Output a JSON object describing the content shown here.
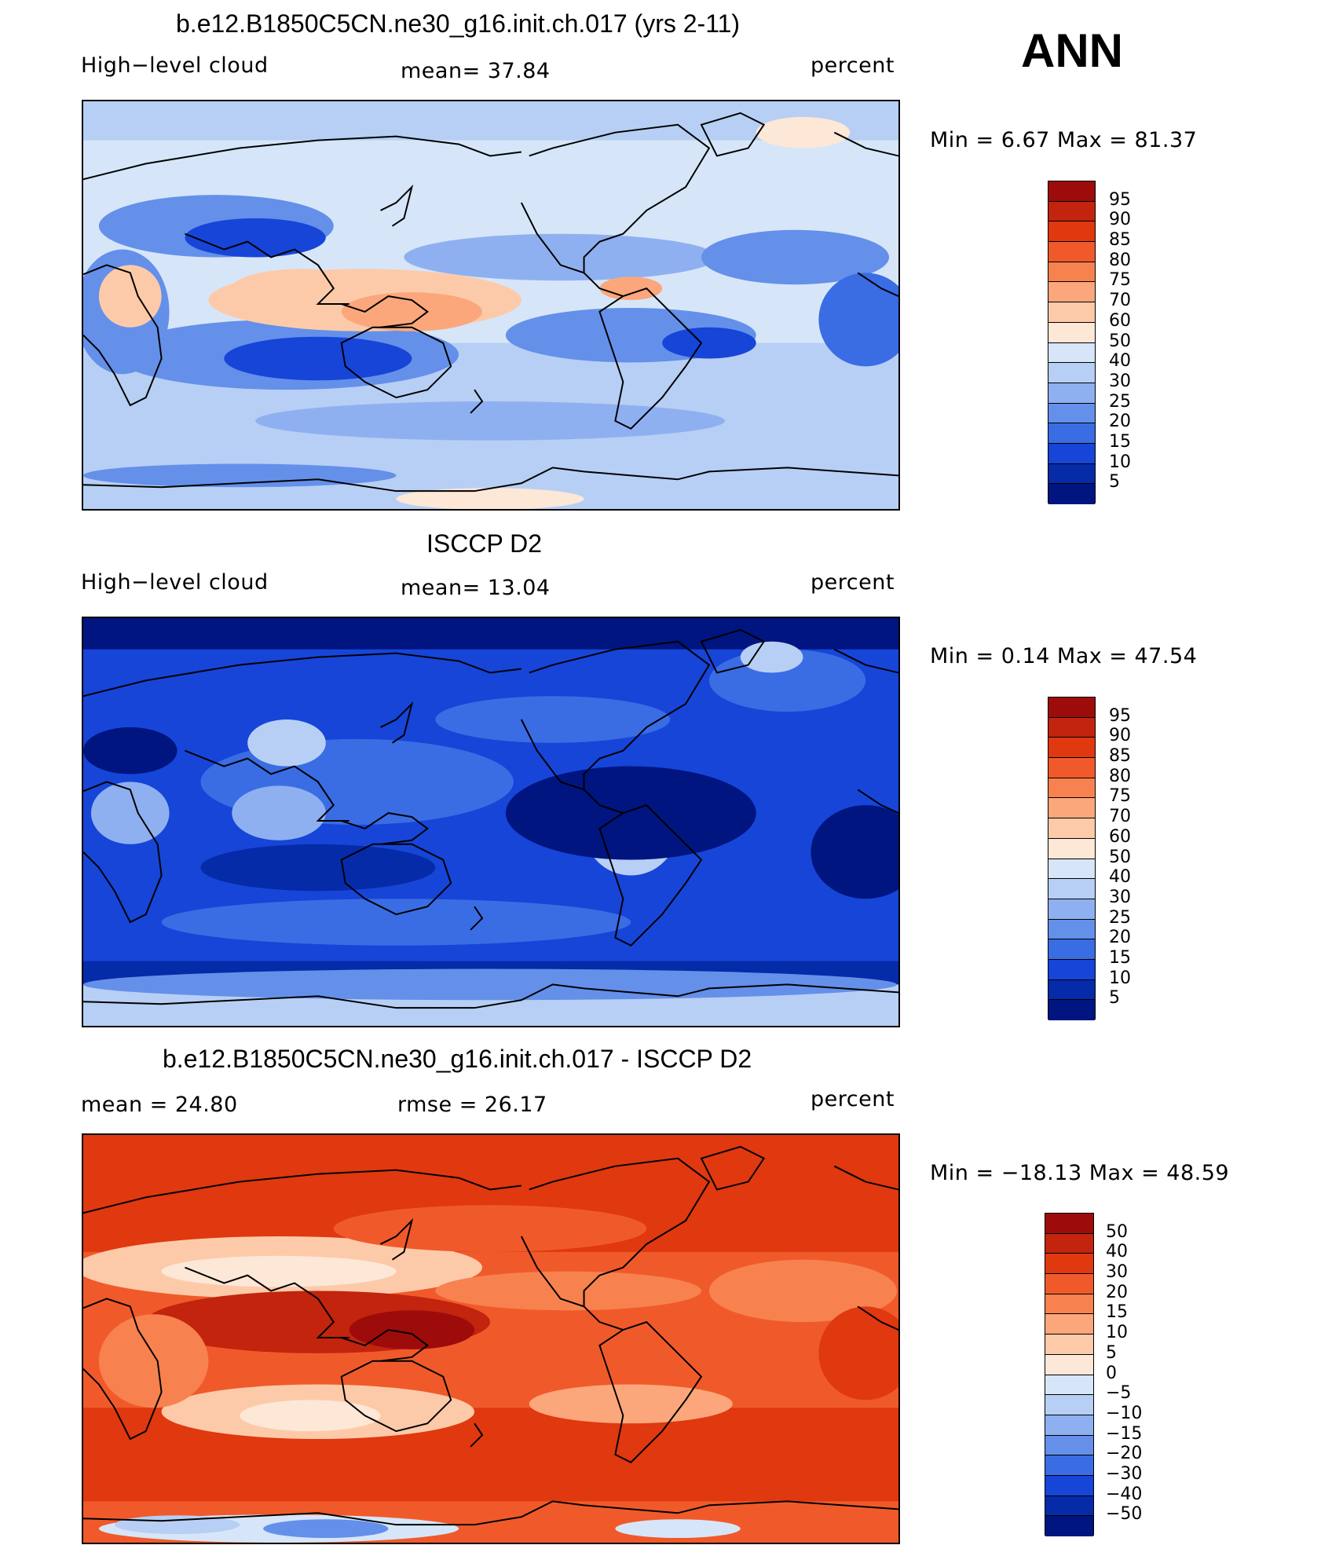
{
  "season": "ANN",
  "panels": [
    {
      "title": "b.e12.B1850C5CN.ne30_g16.init.ch.017 (yrs 2-11)",
      "left_label": "High−level cloud",
      "center_label": "mean=   37.84",
      "right_label": "percent",
      "minmax": "Min =    6.67  Max =   81.37",
      "colorbar_labels": [
        "95",
        "90",
        "85",
        "80",
        "75",
        "70",
        "60",
        "50",
        "40",
        "30",
        "25",
        "20",
        "15",
        "10",
        "5"
      ],
      "colorbar_colors": [
        "#9e0b0b",
        "#c2240e",
        "#e0380f",
        "#f05a2a",
        "#f7824f",
        "#fba77b",
        "#fdcaa9",
        "#fde7d6",
        "#d6e6f8",
        "#b7cff4",
        "#8fb0f0",
        "#6490ea",
        "#3a6ce3",
        "#1645d8",
        "#062ba8",
        "#001580"
      ],
      "field": "model"
    },
    {
      "title": "ISCCP D2",
      "left_label": "High−level cloud",
      "center_label": "mean=   13.04",
      "right_label": "percent",
      "minmax": "Min =    0.14  Max =   47.54",
      "colorbar_labels": [
        "95",
        "90",
        "85",
        "80",
        "75",
        "70",
        "60",
        "50",
        "40",
        "30",
        "25",
        "20",
        "15",
        "10",
        "5"
      ],
      "colorbar_colors": [
        "#9e0b0b",
        "#c2240e",
        "#e0380f",
        "#f05a2a",
        "#f7824f",
        "#fba77b",
        "#fdcaa9",
        "#fde7d6",
        "#d6e6f8",
        "#b7cff4",
        "#8fb0f0",
        "#6490ea",
        "#3a6ce3",
        "#1645d8",
        "#062ba8",
        "#001580"
      ],
      "field": "obs"
    },
    {
      "title": "b.e12.B1850C5CN.ne30_g16.init.ch.017 - ISCCP D2",
      "left_label": "mean =    24.80",
      "center_label": "rmse =    26.17",
      "right_label": "percent",
      "minmax": "Min = −18.13  Max =   48.59",
      "colorbar_labels": [
        "50",
        "40",
        "30",
        "20",
        "15",
        "10",
        "5",
        "0",
        "−5",
        "−10",
        "−15",
        "−20",
        "−30",
        "−40",
        "−50"
      ],
      "colorbar_colors": [
        "#9e0b0b",
        "#c2240e",
        "#e0380f",
        "#f05a2a",
        "#f7824f",
        "#fba77b",
        "#fdcaa9",
        "#fde7d6",
        "#d6e6f8",
        "#b7cff4",
        "#8fb0f0",
        "#6490ea",
        "#3a6ce3",
        "#1645d8",
        "#062ba8",
        "#001580"
      ],
      "field": "diff"
    }
  ]
}
